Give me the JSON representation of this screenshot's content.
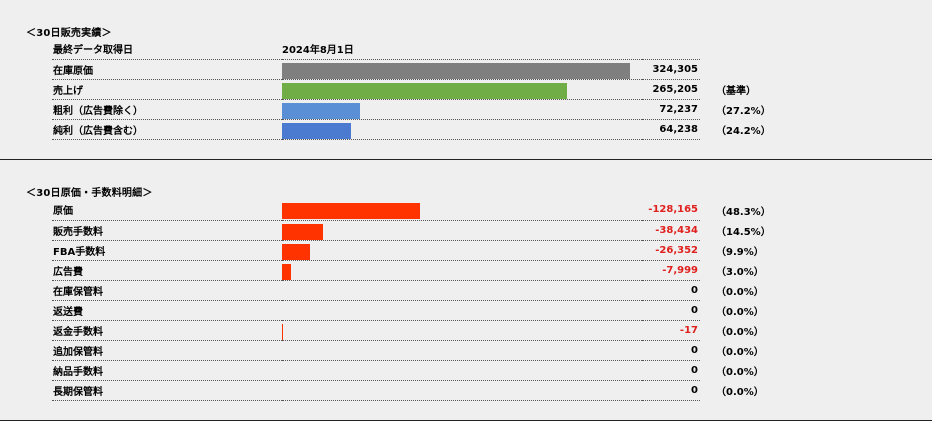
{
  "sales": {
    "title": "＜30日販売実績＞",
    "date_label": "最終データ取得日",
    "date_value": "2024年8月1日",
    "max_value": 324305,
    "rows": [
      {
        "label": "在庫原価",
        "value": "324,305",
        "amount": 324305,
        "pct": "",
        "color": "#7f7f7f"
      },
      {
        "label": "売上げ",
        "value": "265,205",
        "amount": 265205,
        "pct": "（基準）",
        "color": "#70ad47"
      },
      {
        "label": "粗利（広告費除く）",
        "value": "72,237",
        "amount": 72237,
        "pct": "（27.2%）",
        "color": "#5b8fd5"
      },
      {
        "label": "純利（広告費含む）",
        "value": "64,238",
        "amount": 64238,
        "pct": "（24.2%）",
        "color": "#4a7bd0"
      }
    ]
  },
  "costs": {
    "title": "＜30日原価・手数料明細＞",
    "max_value": 324305,
    "bar_color": "#ff3300",
    "rows": [
      {
        "label": "原価",
        "value": "-128,165",
        "amount": 128165,
        "pct": "（48.3%）",
        "negative": true
      },
      {
        "label": "販売手数料",
        "value": "-38,434",
        "amount": 38434,
        "pct": "（14.5%）",
        "negative": true
      },
      {
        "label": "FBA手数料",
        "value": "-26,352",
        "amount": 26352,
        "pct": "（9.9%）",
        "negative": true
      },
      {
        "label": "広告費",
        "value": "-7,999",
        "amount": 7999,
        "pct": "（3.0%）",
        "negative": true
      },
      {
        "label": "在庫保管料",
        "value": "0",
        "amount": 0,
        "pct": "（0.0%）",
        "negative": false
      },
      {
        "label": "返送費",
        "value": "0",
        "amount": 0,
        "pct": "（0.0%）",
        "negative": false
      },
      {
        "label": "返金手数料",
        "value": "-17",
        "amount": 17,
        "pct": "（0.0%）",
        "negative": true
      },
      {
        "label": "追加保管料",
        "value": "0",
        "amount": 0,
        "pct": "（0.0%）",
        "negative": false
      },
      {
        "label": "納品手数料",
        "value": "0",
        "amount": 0,
        "pct": "（0.0%）",
        "negative": false
      },
      {
        "label": "長期保管料",
        "value": "0",
        "amount": 0,
        "pct": "（0.0%）",
        "negative": false
      }
    ]
  }
}
